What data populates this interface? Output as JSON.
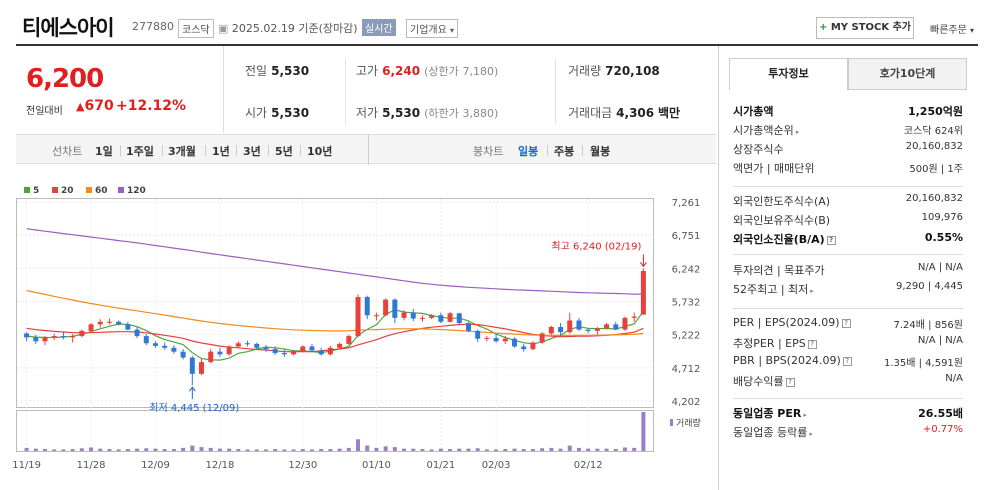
{
  "header": {
    "name": "티에스아이",
    "code": "277880",
    "market": "코스닥",
    "date": "2025.02.19",
    "basis": "기준(장마감)",
    "realtime": "실시간",
    "corp_info": "기업개요",
    "mystock": "MY STOCK 추가",
    "quick_order": "빠른주문"
  },
  "price": {
    "current": "6,200",
    "change_label": "전일대비",
    "change": "670",
    "change_pct": "+12.12%"
  },
  "quote": {
    "prev_label": "전일",
    "prev": "5,530",
    "high_label": "고가",
    "high": "6,240",
    "upper_label": "(상한가",
    "upper": "7,180)",
    "volume_label": "거래량",
    "volume": "720,108",
    "open_label": "시가",
    "open": "5,530",
    "low_label": "저가",
    "low": "5,530",
    "lower_label": "(하한가",
    "lower": "3,880)",
    "amount_label": "거래대금",
    "amount": "4,306",
    "amount_unit": "백만"
  },
  "controls": {
    "line_chart": "선차트",
    "periods": [
      "1일",
      "1주일",
      "3개월",
      "1년",
      "3년",
      "5년",
      "10년"
    ],
    "candle_chart": "봉차트",
    "candles": [
      "일봉",
      "주봉",
      "월봉"
    ],
    "selected_candle": "일봉"
  },
  "legend": [
    {
      "label": "5",
      "color": "#4ca63c"
    },
    {
      "label": "20",
      "color": "#e8403a"
    },
    {
      "label": "60",
      "color": "#f08c1e"
    },
    {
      "label": "120",
      "color": "#9b5fc0"
    }
  ],
  "chart_data": {
    "type": "candlestick",
    "y_ticks": [
      "7,261",
      "6,751",
      "6,242",
      "5,732",
      "5,222",
      "4,712",
      "4,202"
    ],
    "ylim": [
      4202,
      7261
    ],
    "x_ticks": [
      "11/19",
      "11/28",
      "12/09",
      "12/18",
      "12/30",
      "01/10",
      "01/21",
      "02/03",
      "02/12"
    ],
    "high_annotation": "최고 6,240 (02/19)",
    "low_annotation": "최저 4,445 (12/09)",
    "volume_label": "거래량",
    "candles": [
      [
        5240,
        5260,
        5120,
        5180
      ],
      [
        5180,
        5220,
        5080,
        5120
      ],
      [
        5120,
        5200,
        5060,
        5180
      ],
      [
        5180,
        5240,
        5140,
        5200
      ],
      [
        5200,
        5260,
        5150,
        5180
      ],
      [
        5180,
        5230,
        5100,
        5200
      ],
      [
        5200,
        5300,
        5180,
        5280
      ],
      [
        5280,
        5400,
        5250,
        5380
      ],
      [
        5380,
        5460,
        5330,
        5420
      ],
      [
        5420,
        5470,
        5380,
        5420
      ],
      [
        5420,
        5440,
        5360,
        5380
      ],
      [
        5380,
        5420,
        5290,
        5300
      ],
      [
        5300,
        5340,
        5170,
        5200
      ],
      [
        5200,
        5230,
        5060,
        5090
      ],
      [
        5090,
        5120,
        5020,
        5050
      ],
      [
        5050,
        5100,
        4990,
        5020
      ],
      [
        5020,
        5060,
        4930,
        4960
      ],
      [
        4960,
        5000,
        4840,
        4870
      ],
      [
        4870,
        4900,
        4445,
        4620
      ],
      [
        4620,
        4860,
        4600,
        4800
      ],
      [
        4800,
        5000,
        4780,
        4960
      ],
      [
        4960,
        5020,
        4880,
        4920
      ],
      [
        4920,
        5060,
        4900,
        5040
      ],
      [
        5040,
        5120,
        5010,
        5090
      ],
      [
        5090,
        5130,
        5040,
        5080
      ],
      [
        5080,
        5100,
        4990,
        5020
      ],
      [
        5020,
        5060,
        4960,
        5000
      ],
      [
        5000,
        5040,
        4910,
        4940
      ],
      [
        4940,
        4990,
        4880,
        4920
      ],
      [
        4920,
        4990,
        4900,
        4960
      ],
      [
        4960,
        5060,
        4950,
        5040
      ],
      [
        5040,
        5080,
        4960,
        4980
      ],
      [
        4980,
        5020,
        4900,
        4920
      ],
      [
        4920,
        5050,
        4900,
        5020
      ],
      [
        5020,
        5100,
        5000,
        5080
      ],
      [
        5080,
        5220,
        5060,
        5200
      ],
      [
        5200,
        5840,
        5180,
        5800
      ],
      [
        5800,
        5820,
        5460,
        5520
      ],
      [
        5520,
        5560,
        5440,
        5520
      ],
      [
        5520,
        5780,
        5500,
        5760
      ],
      [
        5760,
        5780,
        5400,
        5480
      ],
      [
        5480,
        5600,
        5440,
        5560
      ],
      [
        5560,
        5620,
        5430,
        5470
      ],
      [
        5470,
        5520,
        5420,
        5480
      ],
      [
        5480,
        5540,
        5460,
        5520
      ],
      [
        5520,
        5560,
        5400,
        5420
      ],
      [
        5420,
        5570,
        5410,
        5550
      ],
      [
        5550,
        5560,
        5380,
        5400
      ],
      [
        5400,
        5420,
        5260,
        5280
      ],
      [
        5280,
        5300,
        5110,
        5160
      ],
      [
        5160,
        5200,
        5120,
        5170
      ],
      [
        5170,
        5240,
        5100,
        5120
      ],
      [
        5120,
        5200,
        5080,
        5160
      ],
      [
        5160,
        5180,
        5020,
        5040
      ],
      [
        5040,
        5080,
        4960,
        5000
      ],
      [
        5000,
        5120,
        4980,
        5100
      ],
      [
        5100,
        5260,
        5080,
        5240
      ],
      [
        5240,
        5360,
        5220,
        5340
      ],
      [
        5340,
        5400,
        5200,
        5260
      ],
      [
        5260,
        5560,
        5240,
        5440
      ],
      [
        5440,
        5480,
        5280,
        5300
      ],
      [
        5300,
        5320,
        5240,
        5280
      ],
      [
        5280,
        5340,
        5220,
        5320
      ],
      [
        5320,
        5400,
        5300,
        5380
      ],
      [
        5380,
        5420,
        5290,
        5300
      ],
      [
        5300,
        5500,
        5280,
        5480
      ],
      [
        5480,
        5560,
        5420,
        5500
      ],
      [
        5530,
        6240,
        5530,
        6200
      ]
    ],
    "ma_series": [
      {
        "label": "5",
        "values": [
          5200,
          5185,
          5178,
          5180,
          5186,
          5196,
          5228,
          5268,
          5312,
          5352,
          5384,
          5380,
          5344,
          5284,
          5206,
          5146,
          5108,
          5070,
          4944,
          4854,
          4836,
          4830,
          4860,
          4936,
          4960,
          5002,
          5030,
          5020,
          5002,
          4974,
          4972,
          4962,
          4948,
          4968,
          5004,
          5040,
          5210,
          5302,
          5374,
          5532,
          5604,
          5568,
          5558,
          5548,
          5514,
          5490,
          5474,
          5476,
          5434,
          5362,
          5308,
          5232,
          5180,
          5134,
          5098,
          5082,
          5108,
          5164,
          5210,
          5302,
          5344,
          5320,
          5314,
          5318,
          5308,
          5350,
          5388,
          5580
        ]
      },
      {
        "label": "20",
        "values": [
          5320,
          5300,
          5285,
          5272,
          5262,
          5254,
          5250,
          5252,
          5258,
          5263,
          5268,
          5268,
          5262,
          5250,
          5232,
          5212,
          5190,
          5166,
          5124,
          5094,
          5070,
          5046,
          5030,
          5020,
          5006,
          4994,
          4986,
          4974,
          4962,
          4960,
          4960,
          4962,
          4974,
          4988,
          5002,
          5020,
          5064,
          5104,
          5144,
          5196,
          5236,
          5268,
          5294,
          5318,
          5336,
          5350,
          5364,
          5376,
          5382,
          5376,
          5358,
          5334,
          5310,
          5284,
          5254,
          5228,
          5210,
          5198,
          5190,
          5194,
          5198,
          5198,
          5204,
          5212,
          5222,
          5240,
          5260,
          5320
        ]
      },
      {
        "label": "60",
        "values": [
          5900,
          5870,
          5840,
          5810,
          5782,
          5754,
          5726,
          5700,
          5676,
          5652,
          5630,
          5608,
          5588,
          5566,
          5544,
          5522,
          5500,
          5478,
          5454,
          5432,
          5412,
          5394,
          5378,
          5362,
          5348,
          5336,
          5324,
          5314,
          5304,
          5296,
          5290,
          5286,
          5282,
          5280,
          5280,
          5282,
          5290,
          5296,
          5300,
          5306,
          5310,
          5312,
          5312,
          5310,
          5306,
          5300,
          5294,
          5286,
          5276,
          5266,
          5256,
          5246,
          5238,
          5230,
          5222,
          5216,
          5212,
          5210,
          5210,
          5212,
          5212,
          5212,
          5214,
          5216,
          5218,
          5222,
          5228,
          5240
        ]
      },
      {
        "label": "120",
        "values": [
          6850,
          6830,
          6812,
          6794,
          6776,
          6758,
          6740,
          6722,
          6704,
          6686,
          6668,
          6650,
          6632,
          6612,
          6592,
          6572,
          6552,
          6532,
          6512,
          6490,
          6470,
          6450,
          6430,
          6410,
          6390,
          6370,
          6350,
          6330,
          6310,
          6290,
          6270,
          6250,
          6230,
          6210,
          6190,
          6170,
          6150,
          6130,
          6110,
          6090,
          6070,
          6050,
          6030,
          6012,
          5996,
          5982,
          5970,
          5960,
          5950,
          5942,
          5934,
          5926,
          5918,
          5912,
          5906,
          5900,
          5894,
          5888,
          5882,
          5876,
          5870,
          5866,
          5862,
          5858,
          5854,
          5850,
          5846,
          5844
        ]
      }
    ],
    "volumes": [
      8,
      6,
      5,
      4,
      4,
      5,
      7,
      9,
      6,
      5,
      4,
      5,
      6,
      7,
      6,
      5,
      5,
      8,
      14,
      10,
      8,
      6,
      6,
      5,
      4,
      4,
      4,
      5,
      4,
      4,
      5,
      4,
      5,
      5,
      6,
      8,
      30,
      14,
      8,
      12,
      10,
      6,
      6,
      5,
      4,
      6,
      5,
      6,
      6,
      7,
      4,
      4,
      5,
      6,
      5,
      5,
      7,
      8,
      6,
      14,
      8,
      6,
      6,
      6,
      5,
      9,
      8,
      100
    ]
  },
  "info": {
    "tab_on": "투자정보",
    "tab_off": "호가10단계",
    "rows1": [
      {
        "k": "시가총액",
        "v": "1,250억원",
        "bold": true
      },
      {
        "k": "시가총액순위",
        "v": "코스닥 624위",
        "arrow": true
      },
      {
        "k": "상장주식수",
        "v": "20,160,832"
      },
      {
        "k": "액면가 | 매매단위",
        "v": "500원 | 1주"
      }
    ],
    "rows2": [
      {
        "k": "외국인한도주식수(A)",
        "v": "20,160,832"
      },
      {
        "k": "외국인보유주식수(B)",
        "v": "109,976"
      },
      {
        "k": "외국인소진율(B/A)",
        "v": "0.55%",
        "bold": true,
        "q": true
      }
    ],
    "rows3": [
      {
        "k": "투자의견 | 목표주가",
        "v": "N/A | N/A"
      },
      {
        "k": "52주최고 | 최저",
        "v": "9,290 | 4,445",
        "arrow": true
      }
    ],
    "rows4": [
      {
        "k": "PER | EPS(2024.09)",
        "v": "7.24배 | 856원",
        "q": true
      },
      {
        "k": "추정PER | EPS",
        "v": "N/A | N/A",
        "q": true
      },
      {
        "k": "PBR | BPS(2024.09)",
        "v": "1.35배 | 4,591원",
        "q": true
      },
      {
        "k": "배당수익률",
        "v": "N/A",
        "q": true
      }
    ],
    "rows5": [
      {
        "k": "동일업종 PER",
        "v": "26.55배",
        "bold": true,
        "arrow": true
      },
      {
        "k": "동일업종 등락률",
        "v": "+0.77%",
        "red": true,
        "arrow": true
      }
    ]
  }
}
